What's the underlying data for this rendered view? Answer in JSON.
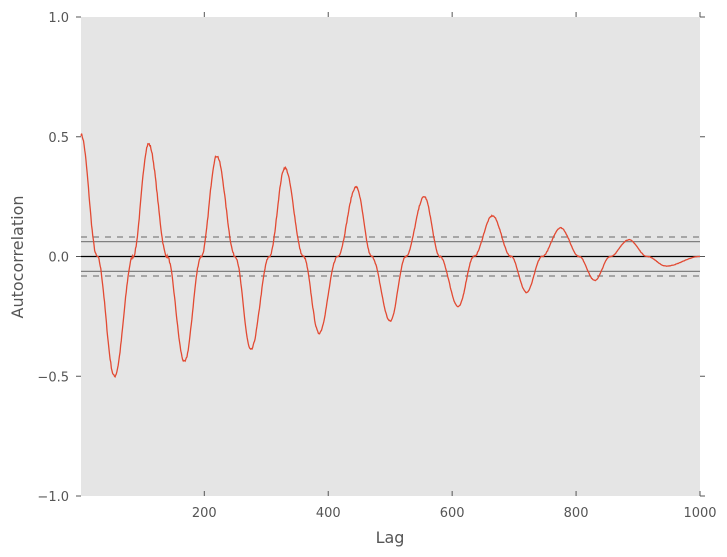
{
  "chart_data": {
    "type": "line",
    "title": "",
    "xlabel": "Lag",
    "ylabel": "Autocorrelation",
    "xlim": [
      1,
      1000
    ],
    "ylim": [
      -1.0,
      1.0
    ],
    "xticks": [
      200,
      400,
      600,
      800,
      1000
    ],
    "xtick_labels": [
      "200",
      "400",
      "600",
      "800",
      "1000"
    ],
    "yticks": [
      -1.0,
      -0.5,
      0.0,
      0.5,
      1.0
    ],
    "ytick_labels": [
      "−1.0",
      "−0.5",
      "0.0",
      "0.5",
      "1.0"
    ],
    "grid": false,
    "background": "#e5e5e5",
    "series_color": "#e24a33",
    "confidence_bands": {
      "z95": 0.062,
      "z99": 0.0815
    },
    "series": [
      {
        "points": [
          [
            1,
            0.51
          ],
          [
            27,
            0
          ],
          [
            55,
            -0.5
          ],
          [
            85,
            0
          ],
          [
            110,
            0.47
          ],
          [
            140,
            0
          ],
          [
            168,
            -0.44
          ],
          [
            195,
            0
          ],
          [
            220,
            0.42
          ],
          [
            250,
            0
          ],
          [
            275,
            -0.39
          ],
          [
            305,
            0
          ],
          [
            330,
            0.37
          ],
          [
            360,
            0
          ],
          [
            385,
            -0.32
          ],
          [
            415,
            0
          ],
          [
            445,
            0.29
          ],
          [
            470,
            0
          ],
          [
            500,
            -0.27
          ],
          [
            525,
            0
          ],
          [
            555,
            0.25
          ],
          [
            580,
            0
          ],
          [
            610,
            -0.21
          ],
          [
            635,
            0
          ],
          [
            665,
            0.17
          ],
          [
            695,
            0
          ],
          [
            720,
            -0.15
          ],
          [
            745,
            0
          ],
          [
            775,
            0.12
          ],
          [
            805,
            0
          ],
          [
            830,
            -0.1
          ],
          [
            855,
            0
          ],
          [
            885,
            0.07
          ],
          [
            915,
            0
          ],
          [
            945,
            -0.04
          ],
          [
            1000,
            0.0
          ]
        ]
      }
    ]
  }
}
